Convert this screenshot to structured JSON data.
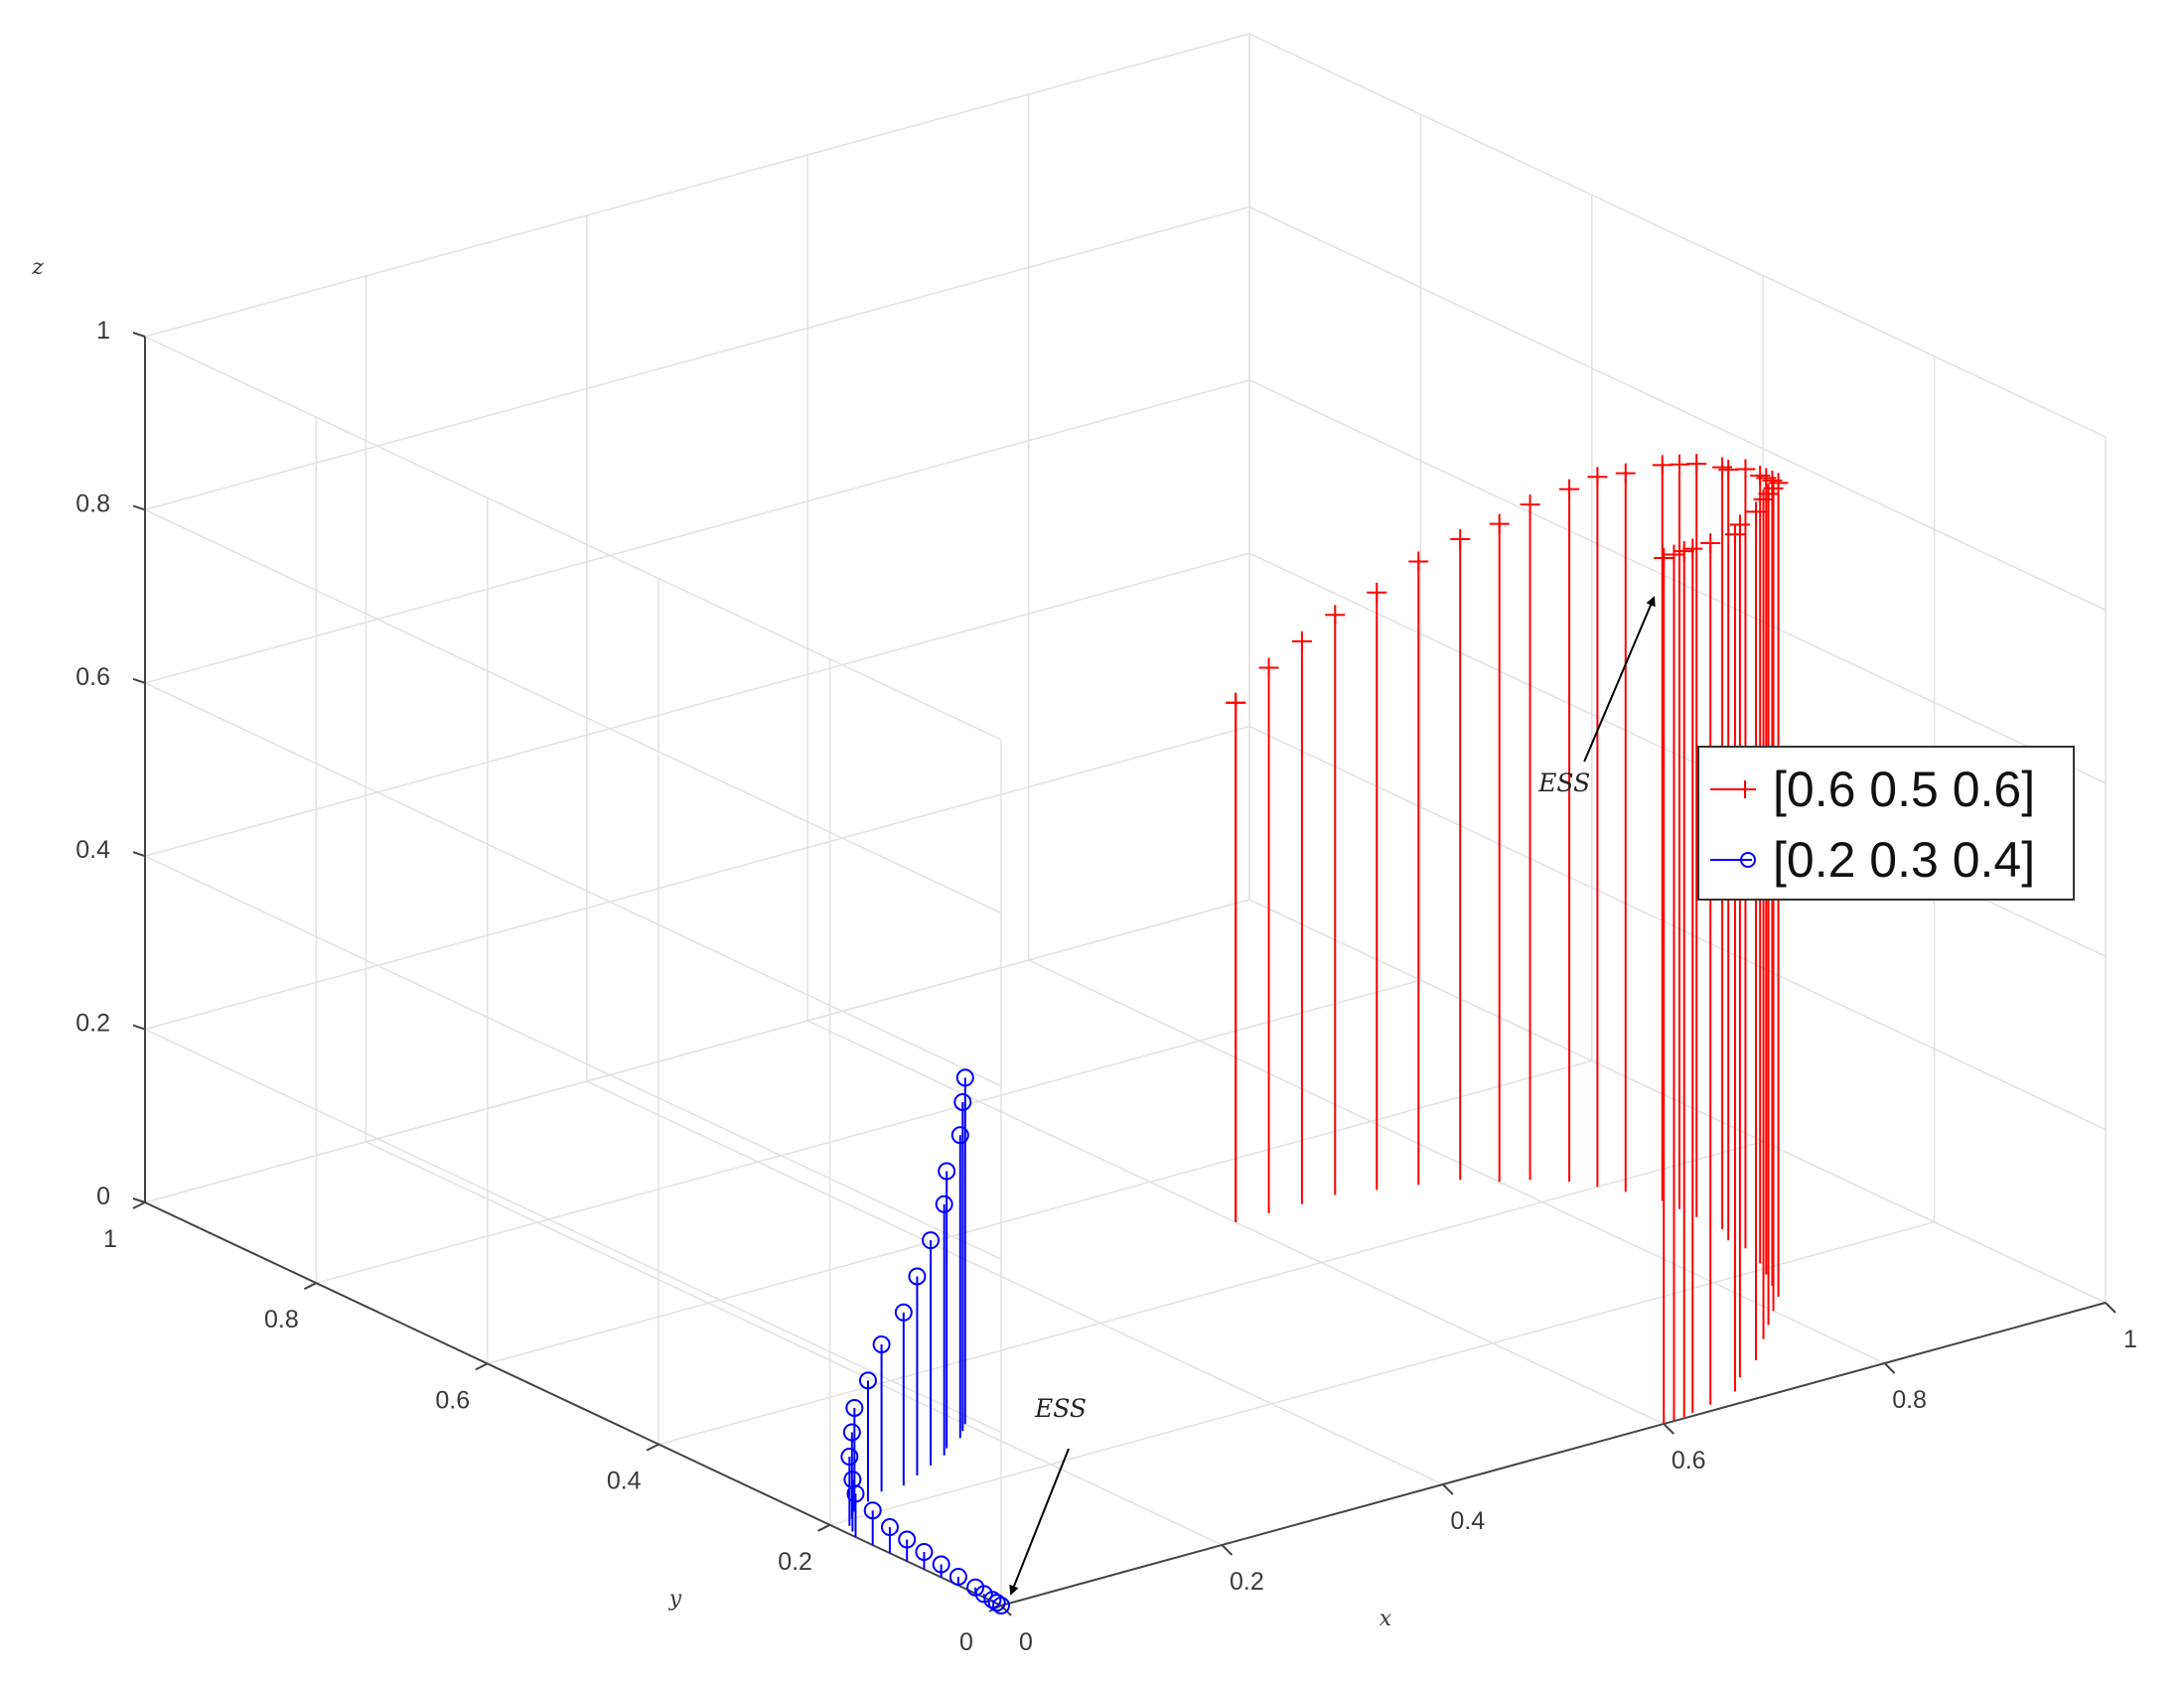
{
  "chart_data": {
    "type": "stem3",
    "xlabel": "x",
    "ylabel": "y",
    "zlabel": "z",
    "xlim": [
      0,
      1
    ],
    "ylim": [
      0,
      1
    ],
    "zlim": [
      0,
      1
    ],
    "x_ticks": [
      "0",
      "0.2",
      "0.4",
      "0.6",
      "0.8",
      "1"
    ],
    "y_ticks": [
      "0",
      "0.2",
      "0.4",
      "0.6",
      "0.8",
      "1"
    ],
    "z_ticks": [
      "0",
      "0.2",
      "0.4",
      "0.6",
      "0.8",
      "1"
    ],
    "grid": true,
    "legend_position": "right",
    "colors": {
      "red": "#ff0000",
      "blue": "#0000ff",
      "grid": "#e2e2e2",
      "axis": "#444444"
    },
    "series": [
      {
        "name": "[0.6 0.5 0.6]",
        "color": "#ff0000",
        "marker": "+",
        "points": [
          [
            0.6,
            0.5,
            0.6
          ],
          [
            0.6,
            0.5,
            0.6
          ],
          [
            0.63,
            0.5,
            0.63
          ],
          [
            0.66,
            0.5,
            0.65
          ],
          [
            0.69,
            0.5,
            0.67
          ],
          [
            0.72,
            0.49,
            0.69
          ],
          [
            0.75,
            0.48,
            0.72
          ],
          [
            0.78,
            0.47,
            0.74
          ],
          [
            0.8,
            0.45,
            0.76
          ],
          [
            0.82,
            0.44,
            0.78
          ],
          [
            0.84,
            0.42,
            0.8
          ],
          [
            0.85,
            0.4,
            0.82
          ],
          [
            0.86,
            0.38,
            0.83
          ],
          [
            0.87,
            0.35,
            0.85
          ],
          [
            0.87,
            0.33,
            0.86
          ],
          [
            0.87,
            0.31,
            0.87
          ],
          [
            0.87,
            0.28,
            0.88
          ],
          [
            0.86,
            0.26,
            0.89
          ],
          [
            0.86,
            0.24,
            0.9
          ],
          [
            0.85,
            0.21,
            0.91
          ],
          [
            0.84,
            0.19,
            0.92
          ],
          [
            0.83,
            0.17,
            0.93
          ],
          [
            0.82,
            0.15,
            0.94
          ],
          [
            0.8,
            0.13,
            0.95
          ],
          [
            0.78,
            0.11,
            0.96
          ],
          [
            0.76,
            0.09,
            0.97
          ],
          [
            0.73,
            0.06,
            0.98
          ],
          [
            0.7,
            0.04,
            0.985
          ],
          [
            0.68,
            0.02,
            0.99
          ],
          [
            0.65,
            0.01,
            0.995
          ],
          [
            0.63,
            0.005,
            0.998
          ],
          [
            0.62,
            0.002,
            1.0
          ],
          [
            0.61,
            0.001,
            1.0
          ],
          [
            0.6,
            0.0,
            1.0
          ]
        ]
      },
      {
        "name": "[0.2 0.3 0.4]",
        "color": "#0000ff",
        "marker": "o",
        "points": [
          [
            0.2,
            0.3,
            0.4
          ],
          [
            0.19,
            0.29,
            0.38
          ],
          [
            0.18,
            0.28,
            0.35
          ],
          [
            0.16,
            0.27,
            0.32
          ],
          [
            0.15,
            0.26,
            0.29
          ],
          [
            0.13,
            0.25,
            0.26
          ],
          [
            0.11,
            0.24,
            0.23
          ],
          [
            0.09,
            0.23,
            0.2
          ],
          [
            0.07,
            0.23,
            0.17
          ],
          [
            0.05,
            0.22,
            0.14
          ],
          [
            0.03,
            0.21,
            0.12
          ],
          [
            0.02,
            0.2,
            0.1
          ],
          [
            0.01,
            0.19,
            0.08
          ],
          [
            0.005,
            0.18,
            0.06
          ],
          [
            0.0,
            0.17,
            0.05
          ],
          [
            0.0,
            0.15,
            0.04
          ],
          [
            0.0,
            0.13,
            0.03
          ],
          [
            0.0,
            0.11,
            0.025
          ],
          [
            0.0,
            0.09,
            0.02
          ],
          [
            0.0,
            0.07,
            0.015
          ],
          [
            0.0,
            0.05,
            0.01
          ],
          [
            0.0,
            0.03,
            0.007
          ],
          [
            0.0,
            0.02,
            0.004
          ],
          [
            0.0,
            0.01,
            0.002
          ],
          [
            0.0,
            0.005,
            0.001
          ],
          [
            0.0,
            0.0,
            0.0
          ]
        ]
      }
    ],
    "annotations": [
      {
        "text": "ESS",
        "point": [
          0.6,
          0.0,
          1.0
        ]
      },
      {
        "text": "ESS",
        "point": [
          0.0,
          0.0,
          0.0
        ]
      }
    ]
  }
}
